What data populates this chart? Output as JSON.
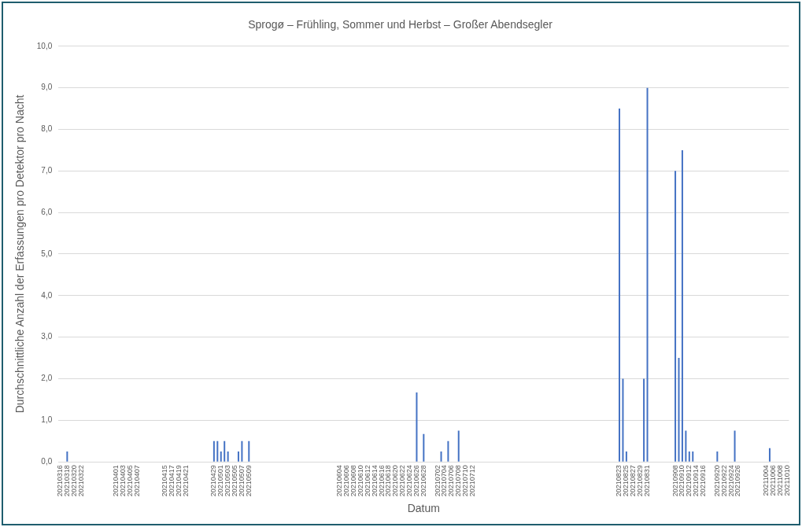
{
  "chart_data": {
    "type": "bar",
    "title": "Sprogø – Frühling, Sommer und Herbst – Großer Abendsegler",
    "xlabel": "Datum",
    "ylabel": "Durchschnittliche Anzahl der Erfassungen pro Detektor pro Nacht",
    "categories": [
      "20210316",
      null,
      "20210318",
      null,
      "20210320",
      null,
      "20210322",
      null,
      null,
      null,
      null,
      null,
      null,
      null,
      null,
      null,
      "20210401",
      null,
      "20210403",
      null,
      "20210405",
      null,
      "20210407",
      null,
      null,
      null,
      null,
      null,
      null,
      null,
      "20210415",
      null,
      "20210417",
      null,
      "20210419",
      null,
      "20210421",
      null,
      null,
      null,
      null,
      null,
      null,
      null,
      "20210429",
      null,
      "20210501",
      null,
      "20210503",
      null,
      "20210505",
      null,
      "20210507",
      null,
      "20210509",
      null,
      null,
      null,
      null,
      null,
      null,
      null,
      null,
      null,
      null,
      null,
      null,
      null,
      null,
      null,
      null,
      null,
      null,
      null,
      null,
      null,
      null,
      null,
      null,
      null,
      "20210604",
      null,
      "20210606",
      null,
      "20210608",
      null,
      "20210610",
      null,
      "20210612",
      null,
      "20210614",
      null,
      "20210616",
      null,
      "20210618",
      null,
      "20210620",
      null,
      "20210622",
      null,
      "20210624",
      null,
      "20210626",
      null,
      "20210628",
      null,
      null,
      null,
      "20210702",
      null,
      "20210704",
      null,
      "20210706",
      null,
      "20210708",
      null,
      "20210710",
      null,
      "20210712",
      null,
      null,
      null,
      null,
      null,
      null,
      null,
      null,
      null,
      null,
      null,
      null,
      null,
      null,
      null,
      null,
      null,
      null,
      null,
      null,
      null,
      null,
      null,
      null,
      null,
      null,
      null,
      null,
      null,
      null,
      null,
      null,
      null,
      null,
      null,
      null,
      null,
      null,
      null,
      null,
      null,
      "20210823",
      null,
      "20210825",
      null,
      "20210827",
      null,
      "20210829",
      null,
      "20210831",
      null,
      null,
      null,
      null,
      null,
      null,
      null,
      "20210908",
      null,
      "20210910",
      null,
      "20210912",
      null,
      "20210914",
      null,
      "20210916",
      null,
      null,
      null,
      "20210920",
      null,
      "20210922",
      null,
      "20210924",
      null,
      "20210926",
      null,
      null,
      null,
      null,
      null,
      null,
      null,
      "20211004",
      null,
      "20211006",
      null,
      "20211008",
      null,
      "20211010"
    ],
    "values": [
      null,
      null,
      0.25,
      null,
      null,
      null,
      null,
      null,
      null,
      null,
      null,
      null,
      null,
      null,
      null,
      null,
      null,
      null,
      null,
      null,
      null,
      null,
      null,
      null,
      null,
      null,
      null,
      null,
      null,
      null,
      null,
      null,
      null,
      null,
      null,
      null,
      null,
      null,
      null,
      null,
      null,
      null,
      null,
      null,
      0.5,
      0.5,
      0.25,
      0.5,
      0.25,
      null,
      null,
      0.25,
      0.5,
      null,
      0.5,
      null,
      null,
      null,
      null,
      null,
      null,
      null,
      null,
      null,
      null,
      null,
      null,
      null,
      null,
      null,
      null,
      null,
      null,
      null,
      null,
      null,
      null,
      null,
      null,
      null,
      null,
      null,
      null,
      null,
      null,
      null,
      null,
      null,
      null,
      null,
      null,
      null,
      null,
      null,
      null,
      null,
      null,
      null,
      null,
      null,
      null,
      null,
      1.67,
      null,
      0.67,
      null,
      null,
      null,
      null,
      0.25,
      null,
      0.5,
      null,
      null,
      0.75,
      null,
      null,
      null,
      null,
      null,
      null,
      null,
      null,
      null,
      null,
      null,
      null,
      null,
      null,
      null,
      null,
      null,
      null,
      null,
      null,
      null,
      null,
      null,
      null,
      null,
      null,
      null,
      null,
      null,
      null,
      null,
      null,
      null,
      null,
      null,
      null,
      null,
      null,
      null,
      null,
      null,
      null,
      null,
      null,
      null,
      8.5,
      2,
      0.25,
      null,
      null,
      null,
      null,
      2,
      9,
      null,
      null,
      null,
      null,
      null,
      null,
      null,
      7,
      2.5,
      7.5,
      0.75,
      0.25,
      0.25,
      null,
      null,
      null,
      null,
      null,
      null,
      0.25,
      null,
      null,
      null,
      null,
      0.75,
      null,
      null,
      null,
      null,
      null,
      null,
      null,
      null,
      null,
      0.33,
      null,
      null,
      null,
      null,
      null
    ],
    "color": "#4472c4",
    "ylim": [
      0,
      10
    ],
    "yticks": [
      {
        "value": 0,
        "label": "0,0"
      },
      {
        "value": 1,
        "label": "1,0"
      },
      {
        "value": 2,
        "label": "2,0"
      },
      {
        "value": 3,
        "label": "3,0"
      },
      {
        "value": 4,
        "label": "4,0"
      },
      {
        "value": 5,
        "label": "5,0"
      },
      {
        "value": 6,
        "label": "6,0"
      },
      {
        "value": 7,
        "label": "7,0"
      },
      {
        "value": 8,
        "label": "8,0"
      },
      {
        "value": 9,
        "label": "9,0"
      },
      {
        "value": 10,
        "label": "10,0"
      }
    ],
    "grid": "y",
    "legend": false
  }
}
